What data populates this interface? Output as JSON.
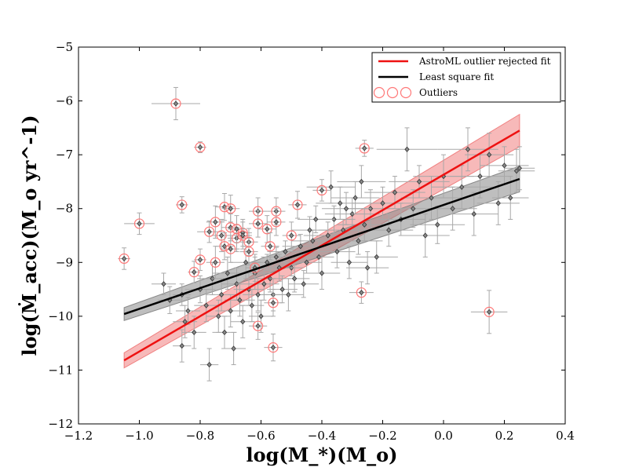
{
  "chart_data": {
    "type": "scatter",
    "title": "",
    "xlabel": "log(M_*)(M_o)",
    "ylabel": "log(Ṁ_acc)(M_o yr^-1)",
    "xlim": [
      -1.2,
      0.4
    ],
    "ylim": [
      -12,
      -5
    ],
    "x_ticks": [
      -1.2,
      -1.0,
      -0.8,
      -0.6,
      -0.4,
      -0.2,
      0.0,
      0.2,
      0.4
    ],
    "x_tick_labels": [
      "−1.2",
      "−1.0",
      "−0.8",
      "−0.6",
      "−0.4",
      "−0.2",
      "0.0",
      "0.2",
      "0.4"
    ],
    "y_ticks": [
      -12,
      -11,
      -10,
      -9,
      -8,
      -7,
      -6,
      -5
    ],
    "y_tick_labels": [
      "−12",
      "−11",
      "−10",
      "−9",
      "−8",
      "−7",
      "−6",
      "−5"
    ],
    "grid": false,
    "legend_position": "top-right",
    "legend": [
      {
        "label": "AstroML outlier rejected fit",
        "color": "#ee1111",
        "kind": "line"
      },
      {
        "label": "Least square fit",
        "color": "#000000",
        "kind": "line"
      },
      {
        "label": "Outliers",
        "color": "#ff7777",
        "kind": "circles"
      }
    ],
    "fits": [
      {
        "name": "AstroML outlier rejected fit",
        "color": "#ee1111",
        "band_color": "#f08080",
        "x": [
          -1.05,
          0.25
        ],
        "y": [
          -10.82,
          -6.55
        ],
        "band": [
          0.14,
          0.3
        ]
      },
      {
        "name": "Least square fit",
        "color": "#000000",
        "band_color": "#888888",
        "x": [
          -1.05,
          0.25
        ],
        "y": [
          -9.96,
          -7.45
        ],
        "band": [
          0.12,
          0.24
        ]
      }
    ],
    "points": [
      {
        "x": -0.58,
        "y": -9.0,
        "xerr": 0.04,
        "yerr": 0.15
      },
      {
        "x": -0.55,
        "y": -8.9,
        "xerr": 0.05,
        "yerr": 0.18
      },
      {
        "x": -0.52,
        "y": -8.8,
        "xerr": 0.06,
        "yerr": 0.2
      },
      {
        "x": -0.5,
        "y": -9.1,
        "xerr": 0.04,
        "yerr": 0.15
      },
      {
        "x": -0.47,
        "y": -8.7,
        "xerr": 0.06,
        "yerr": 0.22
      },
      {
        "x": -0.45,
        "y": -9.0,
        "xerr": 0.05,
        "yerr": 0.2
      },
      {
        "x": -0.43,
        "y": -8.6,
        "xerr": 0.07,
        "yerr": 0.2
      },
      {
        "x": -0.41,
        "y": -8.9,
        "xerr": 0.05,
        "yerr": 0.3
      },
      {
        "x": -0.38,
        "y": -8.5,
        "xerr": 0.08,
        "yerr": 0.25
      },
      {
        "x": -0.36,
        "y": -8.2,
        "xerr": 0.07,
        "yerr": 0.25
      },
      {
        "x": -0.35,
        "y": -8.8,
        "xerr": 0.06,
        "yerr": 0.3
      },
      {
        "x": -0.33,
        "y": -8.4,
        "xerr": 0.08,
        "yerr": 0.2
      },
      {
        "x": -0.31,
        "y": -9.0,
        "xerr": 0.06,
        "yerr": 0.3
      },
      {
        "x": -0.3,
        "y": -8.1,
        "xerr": 0.09,
        "yerr": 0.3
      },
      {
        "x": -0.28,
        "y": -8.6,
        "xerr": 0.08,
        "yerr": 0.25
      },
      {
        "x": -0.26,
        "y": -8.3,
        "xerr": 0.09,
        "yerr": 0.3
      },
      {
        "x": -0.24,
        "y": -8.0,
        "xerr": 0.08,
        "yerr": 0.35
      },
      {
        "x": -0.22,
        "y": -8.9,
        "xerr": 0.07,
        "yerr": 0.3
      },
      {
        "x": -0.2,
        "y": -7.9,
        "xerr": 0.1,
        "yerr": 0.3
      },
      {
        "x": -0.18,
        "y": -8.4,
        "xerr": 0.08,
        "yerr": 0.3
      },
      {
        "x": -0.16,
        "y": -7.7,
        "xerr": 0.1,
        "yerr": 0.3
      },
      {
        "x": -0.14,
        "y": -8.2,
        "xerr": 0.08,
        "yerr": 0.3
      },
      {
        "x": -0.12,
        "y": -6.9,
        "xerr": 0.1,
        "yerr": 0.4
      },
      {
        "x": -0.1,
        "y": -8.0,
        "xerr": 0.09,
        "yerr": 0.35
      },
      {
        "x": -0.08,
        "y": -7.5,
        "xerr": 0.1,
        "yerr": 0.3
      },
      {
        "x": -0.06,
        "y": -8.5,
        "xerr": 0.08,
        "yerr": 0.4
      },
      {
        "x": -0.04,
        "y": -7.8,
        "xerr": 0.1,
        "yerr": 0.4
      },
      {
        "x": -0.02,
        "y": -8.3,
        "xerr": 0.09,
        "yerr": 0.35
      },
      {
        "x": 0.0,
        "y": -7.4,
        "xerr": 0.1,
        "yerr": 0.4
      },
      {
        "x": 0.03,
        "y": -8.0,
        "xerr": 0.08,
        "yerr": 0.4
      },
      {
        "x": 0.06,
        "y": -7.6,
        "xerr": 0.1,
        "yerr": 0.4
      },
      {
        "x": 0.08,
        "y": -6.9,
        "xerr": 0.1,
        "yerr": 0.4
      },
      {
        "x": 0.1,
        "y": -8.1,
        "xerr": 0.08,
        "yerr": 0.4
      },
      {
        "x": 0.12,
        "y": -7.4,
        "xerr": 0.1,
        "yerr": 0.4
      },
      {
        "x": 0.15,
        "y": -7.0,
        "xerr": 0.08,
        "yerr": 0.4
      },
      {
        "x": 0.18,
        "y": -7.9,
        "xerr": 0.07,
        "yerr": 0.4
      },
      {
        "x": 0.2,
        "y": -7.2,
        "xerr": 0.08,
        "yerr": 0.35
      },
      {
        "x": 0.22,
        "y": -7.8,
        "xerr": 0.06,
        "yerr": 0.4
      },
      {
        "x": 0.24,
        "y": -7.3,
        "xerr": 0.06,
        "yerr": 0.4
      },
      {
        "x": 0.25,
        "y": -7.25,
        "xerr": 0.05,
        "yerr": 0.4
      },
      {
        "x": -0.86,
        "y": -9.6,
        "xerr": 0.03,
        "yerr": 0.2
      },
      {
        "x": -0.85,
        "y": -10.1,
        "xerr": 0.04,
        "yerr": 0.3
      },
      {
        "x": -0.84,
        "y": -9.9,
        "xerr": 0.04,
        "yerr": 0.25
      },
      {
        "x": -0.82,
        "y": -10.3,
        "xerr": 0.04,
        "yerr": 0.3
      },
      {
        "x": -0.8,
        "y": -9.5,
        "xerr": 0.05,
        "yerr": 0.25
      },
      {
        "x": -0.78,
        "y": -9.8,
        "xerr": 0.04,
        "yerr": 0.3
      },
      {
        "x": -0.77,
        "y": -10.9,
        "xerr": 0.03,
        "yerr": 0.3
      },
      {
        "x": -0.76,
        "y": -9.3,
        "xerr": 0.05,
        "yerr": 0.3
      },
      {
        "x": -0.74,
        "y": -10.0,
        "xerr": 0.04,
        "yerr": 0.3
      },
      {
        "x": -0.73,
        "y": -9.6,
        "xerr": 0.05,
        "yerr": 0.3
      },
      {
        "x": -0.72,
        "y": -10.3,
        "xerr": 0.04,
        "yerr": 0.3
      },
      {
        "x": -0.71,
        "y": -9.2,
        "xerr": 0.05,
        "yerr": 0.3
      },
      {
        "x": -0.7,
        "y": -9.9,
        "xerr": 0.05,
        "yerr": 0.3
      },
      {
        "x": -0.69,
        "y": -10.6,
        "xerr": 0.04,
        "yerr": 0.3
      },
      {
        "x": -0.68,
        "y": -9.4,
        "xerr": 0.05,
        "yerr": 0.3
      },
      {
        "x": -0.67,
        "y": -9.7,
        "xerr": 0.05,
        "yerr": 0.3
      },
      {
        "x": -0.66,
        "y": -10.1,
        "xerr": 0.04,
        "yerr": 0.3
      },
      {
        "x": -0.65,
        "y": -9.0,
        "xerr": 0.05,
        "yerr": 0.3
      },
      {
        "x": -0.64,
        "y": -9.5,
        "xerr": 0.05,
        "yerr": 0.3
      },
      {
        "x": -0.63,
        "y": -9.8,
        "xerr": 0.04,
        "yerr": 0.3
      },
      {
        "x": -0.62,
        "y": -9.2,
        "xerr": 0.05,
        "yerr": 0.3
      },
      {
        "x": -0.61,
        "y": -9.6,
        "xerr": 0.05,
        "yerr": 0.3
      },
      {
        "x": -0.6,
        "y": -10.0,
        "xerr": 0.04,
        "yerr": 0.3
      },
      {
        "x": -0.59,
        "y": -9.4,
        "xerr": 0.05,
        "yerr": 0.3
      },
      {
        "x": -0.57,
        "y": -9.3,
        "xerr": 0.05,
        "yerr": 0.25
      },
      {
        "x": -0.56,
        "y": -9.6,
        "xerr": 0.04,
        "yerr": 0.3
      },
      {
        "x": -0.54,
        "y": -9.1,
        "xerr": 0.05,
        "yerr": 0.25
      },
      {
        "x": -0.53,
        "y": -9.5,
        "xerr": 0.05,
        "yerr": 0.25
      },
      {
        "x": -0.51,
        "y": -9.6,
        "xerr": 0.05,
        "yerr": 0.3
      },
      {
        "x": -0.49,
        "y": -9.3,
        "xerr": 0.05,
        "yerr": 0.25
      },
      {
        "x": -0.46,
        "y": -9.4,
        "xerr": 0.05,
        "yerr": 0.25
      },
      {
        "x": -0.44,
        "y": -8.4,
        "xerr": 0.06,
        "yerr": 0.25
      },
      {
        "x": -0.42,
        "y": -8.2,
        "xerr": 0.06,
        "yerr": 0.25
      },
      {
        "x": -0.4,
        "y": -9.2,
        "xerr": 0.06,
        "yerr": 0.3
      },
      {
        "x": -0.37,
        "y": -7.6,
        "xerr": 0.08,
        "yerr": 0.3
      },
      {
        "x": -0.34,
        "y": -7.9,
        "xerr": 0.08,
        "yerr": 0.3
      },
      {
        "x": -0.32,
        "y": -8.0,
        "xerr": 0.08,
        "yerr": 0.3
      },
      {
        "x": -0.29,
        "y": -7.8,
        "xerr": 0.08,
        "yerr": 0.3
      },
      {
        "x": -0.27,
        "y": -7.5,
        "xerr": 0.08,
        "yerr": 0.3
      },
      {
        "x": -0.25,
        "y": -9.1,
        "xerr": 0.07,
        "yerr": 0.3
      },
      {
        "x": -0.92,
        "y": -9.4,
        "xerr": 0.04,
        "yerr": 0.2
      },
      {
        "x": -0.9,
        "y": -9.7,
        "xerr": 0.04,
        "yerr": 0.25
      },
      {
        "x": -0.86,
        "y": -10.55,
        "xerr": 0.03,
        "yerr": 0.3
      }
    ],
    "outliers": [
      {
        "x": -0.88,
        "y": -6.05,
        "xerr": 0.08,
        "yerr": 0.3
      },
      {
        "x": -1.0,
        "y": -8.28,
        "xerr": 0.05,
        "yerr": 0.2
      },
      {
        "x": -1.05,
        "y": -8.93,
        "xerr": 0.02,
        "yerr": 0.2
      },
      {
        "x": -0.86,
        "y": -7.93,
        "xerr": 0.02,
        "yerr": 0.15
      },
      {
        "x": -0.8,
        "y": -6.86,
        "xerr": 0.02,
        "yerr": 0.1
      },
      {
        "x": -0.82,
        "y": -9.18,
        "xerr": 0.02,
        "yerr": 0.2
      },
      {
        "x": -0.8,
        "y": -8.95,
        "xerr": 0.02,
        "yerr": 0.2
      },
      {
        "x": -0.77,
        "y": -8.43,
        "xerr": 0.04,
        "yerr": 0.2
      },
      {
        "x": -0.75,
        "y": -8.25,
        "xerr": 0.03,
        "yerr": 0.3
      },
      {
        "x": -0.75,
        "y": -9.0,
        "xerr": 0.03,
        "yerr": 0.3
      },
      {
        "x": -0.73,
        "y": -8.5,
        "xerr": 0.03,
        "yerr": 0.3
      },
      {
        "x": -0.72,
        "y": -7.97,
        "xerr": 0.03,
        "yerr": 0.25
      },
      {
        "x": -0.72,
        "y": -8.7,
        "xerr": 0.03,
        "yerr": 0.25
      },
      {
        "x": -0.7,
        "y": -8.0,
        "xerr": 0.03,
        "yerr": 0.25
      },
      {
        "x": -0.7,
        "y": -8.35,
        "xerr": 0.03,
        "yerr": 0.25
      },
      {
        "x": -0.7,
        "y": -8.75,
        "xerr": 0.03,
        "yerr": 0.25
      },
      {
        "x": -0.68,
        "y": -8.55,
        "xerr": 0.03,
        "yerr": 0.25
      },
      {
        "x": -0.66,
        "y": -8.45,
        "xerr": 0.03,
        "yerr": 0.25
      },
      {
        "x": -0.64,
        "y": -8.62,
        "xerr": 0.03,
        "yerr": 0.25
      },
      {
        "x": -0.64,
        "y": -8.8,
        "xerr": 0.03,
        "yerr": 0.25
      },
      {
        "x": -0.62,
        "y": -9.1,
        "xerr": 0.03,
        "yerr": 0.25
      },
      {
        "x": -0.61,
        "y": -8.05,
        "xerr": 0.03,
        "yerr": 0.25
      },
      {
        "x": -0.61,
        "y": -8.28,
        "xerr": 0.03,
        "yerr": 0.25
      },
      {
        "x": -0.61,
        "y": -10.18,
        "xerr": 0.03,
        "yerr": 0.25
      },
      {
        "x": -0.58,
        "y": -8.38,
        "xerr": 0.03,
        "yerr": 0.25
      },
      {
        "x": -0.57,
        "y": -8.7,
        "xerr": 0.03,
        "yerr": 0.25
      },
      {
        "x": -0.56,
        "y": -9.75,
        "xerr": 0.03,
        "yerr": 0.25
      },
      {
        "x": -0.56,
        "y": -10.58,
        "xerr": 0.03,
        "yerr": 0.25
      },
      {
        "x": -0.55,
        "y": -8.05,
        "xerr": 0.03,
        "yerr": 0.25
      },
      {
        "x": -0.55,
        "y": -8.25,
        "xerr": 0.03,
        "yerr": 0.25
      },
      {
        "x": -0.5,
        "y": -8.5,
        "xerr": 0.03,
        "yerr": 0.25
      },
      {
        "x": -0.48,
        "y": -7.93,
        "xerr": 0.03,
        "yerr": 0.25
      },
      {
        "x": -0.4,
        "y": -7.66,
        "xerr": 0.03,
        "yerr": 0.2
      },
      {
        "x": -0.26,
        "y": -6.88,
        "xerr": 0.03,
        "yerr": 0.15
      },
      {
        "x": -0.27,
        "y": -9.56,
        "xerr": 0.04,
        "yerr": 0.2
      },
      {
        "x": 0.15,
        "y": -9.92,
        "xerr": 0.06,
        "yerr": 0.4
      },
      {
        "x": -0.66,
        "y": -8.5,
        "xerr": 0.03,
        "yerr": 0.25
      },
      {
        "x": -0.68,
        "y": -8.38,
        "xerr": 0.03,
        "yerr": 0.25
      }
    ]
  }
}
